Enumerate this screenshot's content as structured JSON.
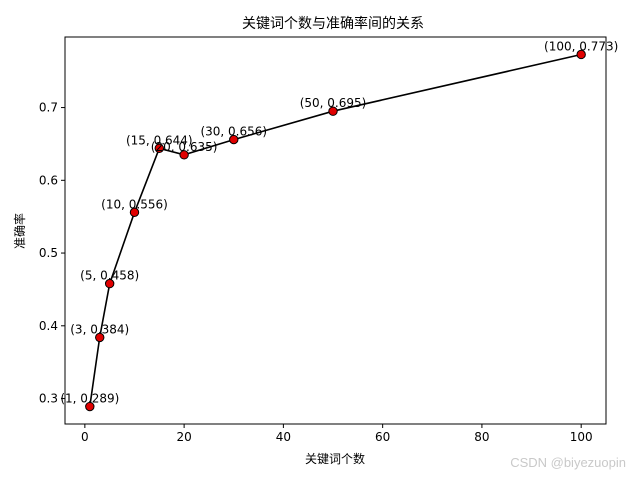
{
  "chart_data": {
    "type": "line",
    "title": "关键词个数与准确率间的关系",
    "xlabel": "关键词个数",
    "ylabel": "准确率",
    "xlim": [
      -4,
      105
    ],
    "ylim": [
      0.265,
      0.797
    ],
    "xticks": [
      0,
      20,
      40,
      60,
      80,
      100
    ],
    "yticks": [
      0.3,
      0.4,
      0.5,
      0.6,
      0.7
    ],
    "grid": false,
    "x": [
      1,
      3,
      5,
      10,
      15,
      20,
      30,
      50,
      100
    ],
    "y": [
      0.289,
      0.384,
      0.458,
      0.556,
      0.644,
      0.635,
      0.656,
      0.695,
      0.773
    ],
    "point_labels": [
      "(1, 0.289)",
      "(3, 0.384)",
      "(5, 0.458)",
      "(10, 0.556)",
      "(15, 0.644)",
      "(20, 0.635)",
      "(30, 0.656)",
      "(50, 0.695)",
      "(100, 0.773)"
    ],
    "line_color": "#000000",
    "marker_color": "#e00000"
  },
  "watermark": "CSDN @biyezuopin"
}
